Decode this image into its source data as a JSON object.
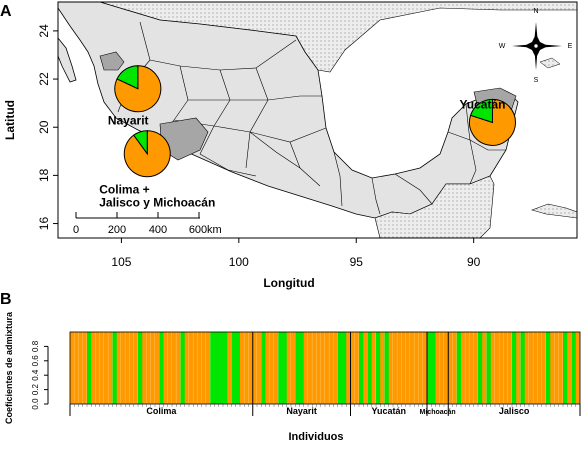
{
  "panel_a": {
    "label": "A",
    "colors": {
      "ocean": "#ffffff",
      "land": "#e3e3e3",
      "highlight": "#a6a6a6",
      "border": "#000000",
      "pie_orange": "#ff9900",
      "pie_green": "#00e600"
    }
  },
  "panel_b": {
    "label": "B",
    "colors": {
      "orange": "#ff9900",
      "green": "#00e600"
    }
  },
  "compass": {
    "n": "N",
    "s": "S",
    "e": "E",
    "w": "W",
    "icon": "compass-rose-icon"
  },
  "scale_bar": {
    "ticks": [
      "0",
      "200",
      "400",
      "600"
    ],
    "unit": "km"
  },
  "chart_data": [
    {
      "type": "map",
      "xlabel": "Longitud",
      "ylabel": "Latitud",
      "xlim": [
        -107.7,
        -85.6
      ],
      "ylim": [
        15.4,
        25.2
      ],
      "x_ticks": [
        -105,
        -100,
        -95,
        -90,
        -85
      ],
      "x_tick_labels": [
        "105",
        "100",
        "95",
        "90",
        "85"
      ],
      "y_ticks": [
        16,
        18,
        20,
        22,
        24
      ],
      "y_tick_labels": [
        "16",
        "18",
        "20",
        "22",
        "24"
      ],
      "pies": [
        {
          "label": "Nayarit",
          "lon": -104.3,
          "lat": 21.6,
          "values": [
            0.82,
            0.18
          ],
          "colors": [
            "#ff9900",
            "#00e600"
          ]
        },
        {
          "label_lines": [
            "Colima +",
            "Jalisco y Michoacán"
          ],
          "lon": -103.9,
          "lat": 18.9,
          "values": [
            0.9,
            0.1
          ],
          "colors": [
            "#ff9900",
            "#00e600"
          ]
        },
        {
          "label": "Yucatán",
          "lon": -89.2,
          "lat": 20.2,
          "values": [
            0.8,
            0.2
          ],
          "colors": [
            "#ff9900",
            "#00e600"
          ]
        }
      ]
    },
    {
      "type": "bar",
      "stacked": true,
      "xlabel": "Individuos",
      "ylabel": "Coeficientes de admixtura",
      "ylim": [
        0,
        1
      ],
      "y_ticks": [
        0,
        0.2,
        0.4,
        0.6,
        0.8
      ],
      "y_tick_labels": [
        "0.0",
        "0.2",
        "0.4",
        "0.6",
        "0.8"
      ],
      "n_individuals": 120,
      "groups": [
        {
          "name": "Colima",
          "start": 0,
          "end": 43
        },
        {
          "name": "Nayarit",
          "start": 43,
          "end": 66
        },
        {
          "name": "Yucatán",
          "start": 66,
          "end": 84
        },
        {
          "name": "Michoacán",
          "start": 84,
          "end": 89
        },
        {
          "name": "Jalisco",
          "start": 89,
          "end": 120
        }
      ],
      "green_individuals": [
        4,
        10,
        16,
        21,
        26,
        33,
        34,
        35,
        36,
        38,
        39,
        45,
        49,
        50,
        53,
        54,
        63,
        64,
        68,
        70,
        72,
        74,
        84,
        85,
        91,
        96,
        98,
        104,
        106,
        112,
        116,
        118
      ]
    }
  ]
}
